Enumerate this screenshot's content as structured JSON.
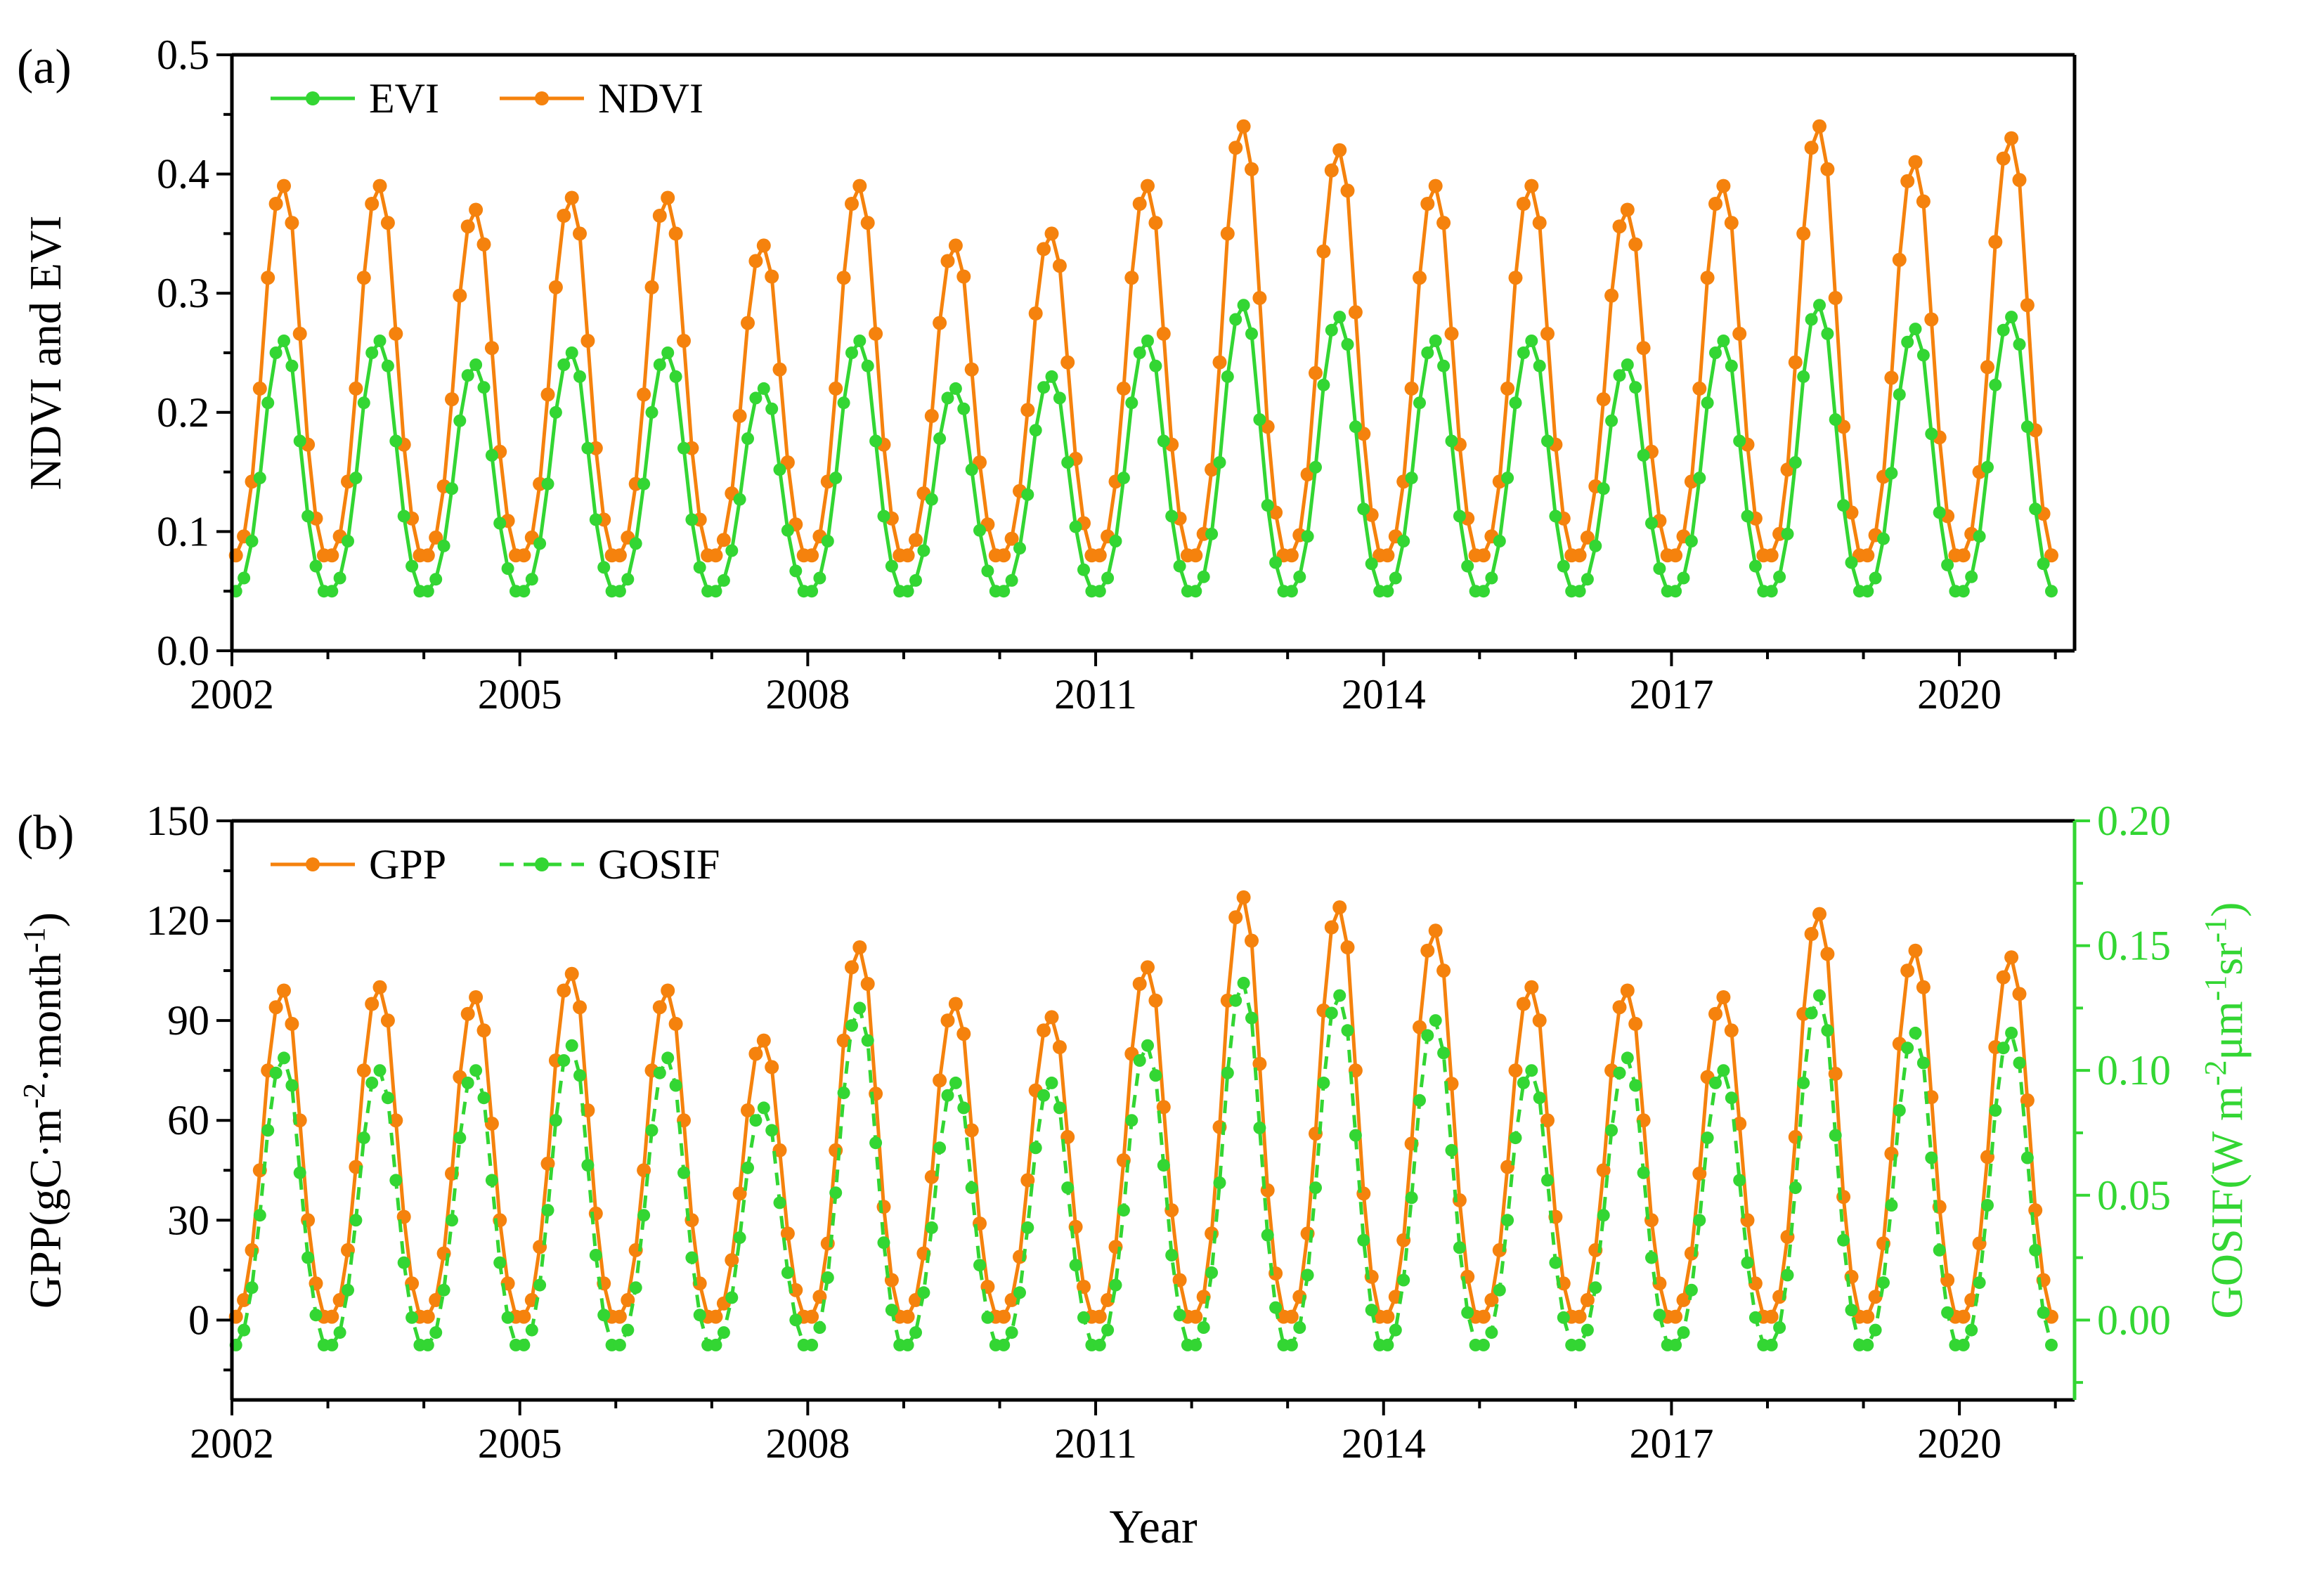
{
  "figure": {
    "panel_a_label": "(a)",
    "panel_b_label": "(b)",
    "xlabel": "Year",
    "accent_orange": "#F5820D",
    "accent_green": "#33D633"
  },
  "chart_data": [
    {
      "panel": "a",
      "type": "line",
      "panel_label": "(a)",
      "ylabel": "NDVI and EVI",
      "ylim": [
        0,
        0.5
      ],
      "xlim": [
        2002,
        2021.2
      ],
      "grid": false,
      "legend_position": "top-left-inside",
      "yticks": {
        "values": [
          0.0,
          0.1,
          0.2,
          0.3,
          0.4,
          0.5
        ],
        "labels": [
          "0.0",
          "0.1",
          "0.2",
          "0.3",
          "0.4",
          "0.5"
        ]
      },
      "xticks": {
        "values": [
          2002,
          2005,
          2008,
          2011,
          2014,
          2017,
          2020
        ],
        "labels": [
          "2002",
          "2005",
          "2008",
          "2011",
          "2014",
          "2017",
          "2020"
        ]
      },
      "x_start_year": 2002,
      "points_per_year": 12,
      "series": [
        {
          "name": "EVI",
          "color": "#33D633",
          "style": "solid",
          "marker": "circle",
          "values": [
            0.05,
            0.061,
            0.092,
            0.145,
            0.208,
            0.25,
            0.26,
            0.239,
            0.176,
            0.113,
            0.071,
            0.05,
            0.05,
            0.061,
            0.092,
            0.145,
            0.208,
            0.25,
            0.26,
            0.239,
            0.176,
            0.113,
            0.071,
            0.05,
            0.05,
            0.06,
            0.088,
            0.136,
            0.193,
            0.231,
            0.24,
            0.221,
            0.164,
            0.107,
            0.069,
            0.05,
            0.05,
            0.06,
            0.09,
            0.14,
            0.2,
            0.24,
            0.25,
            0.23,
            0.17,
            0.11,
            0.07,
            0.05,
            0.05,
            0.06,
            0.09,
            0.14,
            0.2,
            0.24,
            0.25,
            0.23,
            0.17,
            0.11,
            0.07,
            0.05,
            0.05,
            0.059,
            0.084,
            0.127,
            0.178,
            0.212,
            0.22,
            0.203,
            0.152,
            0.101,
            0.067,
            0.05,
            0.05,
            0.061,
            0.092,
            0.145,
            0.208,
            0.25,
            0.26,
            0.239,
            0.176,
            0.113,
            0.071,
            0.05,
            0.05,
            0.059,
            0.084,
            0.127,
            0.178,
            0.212,
            0.22,
            0.203,
            0.152,
            0.101,
            0.067,
            0.05,
            0.05,
            0.059,
            0.086,
            0.131,
            0.185,
            0.221,
            0.23,
            0.212,
            0.158,
            0.104,
            0.068,
            0.05,
            0.05,
            0.061,
            0.092,
            0.145,
            0.208,
            0.25,
            0.26,
            0.239,
            0.176,
            0.113,
            0.071,
            0.05,
            0.05,
            0.062,
            0.098,
            0.158,
            0.23,
            0.278,
            0.29,
            0.266,
            0.194,
            0.122,
            0.074,
            0.05,
            0.05,
            0.062,
            0.096,
            0.154,
            0.223,
            0.269,
            0.28,
            0.257,
            0.188,
            0.119,
            0.073,
            0.05,
            0.05,
            0.061,
            0.092,
            0.145,
            0.208,
            0.25,
            0.26,
            0.239,
            0.176,
            0.113,
            0.071,
            0.05,
            0.05,
            0.061,
            0.092,
            0.145,
            0.208,
            0.25,
            0.26,
            0.239,
            0.176,
            0.113,
            0.071,
            0.05,
            0.05,
            0.06,
            0.088,
            0.136,
            0.193,
            0.231,
            0.24,
            0.221,
            0.164,
            0.107,
            0.069,
            0.05,
            0.05,
            0.061,
            0.092,
            0.145,
            0.208,
            0.25,
            0.26,
            0.239,
            0.176,
            0.113,
            0.071,
            0.05,
            0.05,
            0.062,
            0.098,
            0.158,
            0.23,
            0.278,
            0.29,
            0.266,
            0.194,
            0.122,
            0.074,
            0.05,
            0.05,
            0.061,
            0.094,
            0.149,
            0.215,
            0.259,
            0.27,
            0.248,
            0.182,
            0.116,
            0.072,
            0.05,
            0.05,
            0.062,
            0.096,
            0.154,
            0.223,
            0.269,
            0.28,
            0.257,
            0.188,
            0.119,
            0.073,
            0.05
          ]
        },
        {
          "name": "NDVI",
          "color": "#F5820D",
          "style": "solid",
          "marker": "circle",
          "values": [
            0.08,
            0.096,
            0.142,
            0.22,
            0.313,
            0.375,
            0.39,
            0.359,
            0.266,
            0.173,
            0.111,
            0.08,
            0.08,
            0.096,
            0.142,
            0.22,
            0.313,
            0.375,
            0.39,
            0.359,
            0.266,
            0.173,
            0.111,
            0.08,
            0.08,
            0.095,
            0.138,
            0.211,
            0.298,
            0.356,
            0.37,
            0.341,
            0.254,
            0.167,
            0.109,
            0.08,
            0.08,
            0.095,
            0.14,
            0.215,
            0.305,
            0.365,
            0.38,
            0.35,
            0.26,
            0.17,
            0.11,
            0.08,
            0.08,
            0.095,
            0.14,
            0.215,
            0.305,
            0.365,
            0.38,
            0.35,
            0.26,
            0.17,
            0.11,
            0.08,
            0.08,
            0.093,
            0.132,
            0.197,
            0.275,
            0.327,
            0.34,
            0.314,
            0.236,
            0.158,
            0.106,
            0.08,
            0.08,
            0.096,
            0.142,
            0.22,
            0.313,
            0.375,
            0.39,
            0.359,
            0.266,
            0.173,
            0.111,
            0.08,
            0.08,
            0.093,
            0.132,
            0.197,
            0.275,
            0.327,
            0.34,
            0.314,
            0.236,
            0.158,
            0.106,
            0.08,
            0.08,
            0.094,
            0.134,
            0.202,
            0.283,
            0.337,
            0.35,
            0.323,
            0.242,
            0.161,
            0.107,
            0.08,
            0.08,
            0.096,
            0.142,
            0.22,
            0.313,
            0.375,
            0.39,
            0.359,
            0.266,
            0.173,
            0.111,
            0.08,
            0.08,
            0.098,
            0.152,
            0.242,
            0.35,
            0.422,
            0.44,
            0.404,
            0.296,
            0.188,
            0.116,
            0.08,
            0.08,
            0.097,
            0.148,
            0.233,
            0.335,
            0.403,
            0.42,
            0.386,
            0.284,
            0.182,
            0.114,
            0.08,
            0.08,
            0.096,
            0.142,
            0.22,
            0.313,
            0.375,
            0.39,
            0.359,
            0.266,
            0.173,
            0.111,
            0.08,
            0.08,
            0.096,
            0.142,
            0.22,
            0.313,
            0.375,
            0.39,
            0.359,
            0.266,
            0.173,
            0.111,
            0.08,
            0.08,
            0.095,
            0.138,
            0.211,
            0.298,
            0.356,
            0.37,
            0.341,
            0.254,
            0.167,
            0.109,
            0.08,
            0.08,
            0.096,
            0.142,
            0.22,
            0.313,
            0.375,
            0.39,
            0.359,
            0.266,
            0.173,
            0.111,
            0.08,
            0.08,
            0.098,
            0.152,
            0.242,
            0.35,
            0.422,
            0.44,
            0.404,
            0.296,
            0.188,
            0.116,
            0.08,
            0.08,
            0.097,
            0.146,
            0.229,
            0.328,
            0.394,
            0.41,
            0.377,
            0.278,
            0.179,
            0.113,
            0.08,
            0.08,
            0.098,
            0.15,
            0.238,
            0.343,
            0.413,
            0.43,
            0.395,
            0.29,
            0.185,
            0.115,
            0.08
          ]
        }
      ]
    },
    {
      "panel": "b",
      "type": "line",
      "panel_label": "(b)",
      "xlabel": "Year",
      "ylabel_left": "GPP(gC·m⁻²·month⁻¹)",
      "ylabel_right": "GOSIF(W m⁻²μm⁻¹sr⁻¹)",
      "ylim_left": [
        -24,
        150
      ],
      "ylim_right": [
        -0.032,
        0.2
      ],
      "xlim": [
        2002,
        2021.2
      ],
      "grid": false,
      "legend_position": "top-left-inside",
      "yticks_left": {
        "values": [
          0,
          30,
          60,
          90,
          120,
          150
        ],
        "labels": [
          "0",
          "30",
          "60",
          "90",
          "120",
          "150"
        ]
      },
      "yticks_right": {
        "values": [
          0.0,
          0.05,
          0.1,
          0.15,
          0.2
        ],
        "labels": [
          "0.00",
          "0.05",
          "0.10",
          "0.15",
          "0.20"
        ]
      },
      "xticks": {
        "values": [
          2002,
          2005,
          2008,
          2011,
          2014,
          2017,
          2020
        ],
        "labels": [
          "2002",
          "2005",
          "2008",
          "2011",
          "2014",
          "2017",
          "2020"
        ]
      },
      "x_start_year": 2002,
      "points_per_year": 12,
      "series": [
        {
          "name": "GPP",
          "axis": "left",
          "color": "#F5820D",
          "style": "solid",
          "marker": "circle",
          "values": [
            1,
            6,
            21,
            45,
            75,
            94,
            99,
            89,
            60,
            30,
            11,
            1,
            1,
            6,
            21,
            46,
            75,
            95,
            100,
            90,
            60,
            31,
            11,
            1,
            1,
            6,
            20,
            44,
            73,
            92,
            97,
            87,
            59,
            30,
            11,
            1,
            1,
            6,
            22,
            47,
            78,
            99,
            104,
            94,
            63,
            32,
            11,
            1,
            1,
            6,
            21,
            45,
            75,
            94,
            99,
            89,
            60,
            30,
            11,
            1,
            1,
            5,
            18,
            38,
            63,
            80,
            84,
            76,
            51,
            26,
            9,
            1,
            1,
            7,
            23,
            51,
            84,
            106,
            112,
            101,
            68,
            34,
            12,
            1,
            1,
            6,
            20,
            43,
            72,
            90,
            95,
            86,
            57,
            29,
            10,
            1,
            1,
            6,
            19,
            42,
            69,
            87,
            91,
            82,
            55,
            28,
            10,
            1,
            1,
            6,
            22,
            48,
            80,
            101,
            106,
            96,
            64,
            33,
            12,
            1,
            1,
            7,
            26,
            58,
            96,
            121,
            127,
            114,
            77,
            39,
            14,
            1,
            1,
            7,
            26,
            56,
            93,
            118,
            124,
            112,
            75,
            38,
            13,
            1,
            1,
            7,
            24,
            53,
            88,
            111,
            117,
            105,
            71,
            36,
            13,
            1,
            1,
            6,
            21,
            46,
            75,
            95,
            100,
            90,
            60,
            31,
            11,
            1,
            1,
            6,
            21,
            45,
            75,
            94,
            99,
            89,
            60,
            30,
            11,
            1,
            1,
            6,
            20,
            44,
            73,
            92,
            97,
            87,
            59,
            30,
            11,
            1,
            1,
            7,
            25,
            55,
            92,
            116,
            122,
            110,
            74,
            37,
            13,
            1,
            1,
            7,
            23,
            50,
            83,
            105,
            111,
            100,
            67,
            34,
            12,
            1,
            1,
            6,
            23,
            49,
            82,
            103,
            109,
            98,
            66,
            33,
            12,
            1
          ]
        },
        {
          "name": "GOSIF",
          "axis": "right",
          "color": "#33D633",
          "style": "dashed",
          "marker": "circle",
          "values": [
            -0.01,
            -0.004,
            0.013,
            0.042,
            0.076,
            0.099,
            0.105,
            0.094,
            0.059,
            0.025,
            0.002,
            -0.01,
            -0.01,
            -0.005,
            0.012,
            0.04,
            0.073,
            0.095,
            0.1,
            0.089,
            0.056,
            0.023,
            0.001,
            -0.01,
            -0.01,
            -0.005,
            0.012,
            0.04,
            0.073,
            0.095,
            0.1,
            0.089,
            0.056,
            0.023,
            0.001,
            -0.01,
            -0.01,
            -0.004,
            0.014,
            0.044,
            0.08,
            0.104,
            0.11,
            0.098,
            0.062,
            0.026,
            0.002,
            -0.01,
            -0.01,
            -0.004,
            0.013,
            0.042,
            0.076,
            0.099,
            0.105,
            0.094,
            0.059,
            0.025,
            0.002,
            -0.01,
            -0.01,
            -0.005,
            0.009,
            0.033,
            0.061,
            0.08,
            0.085,
            0.076,
            0.047,
            0.019,
            0.0,
            -0.01,
            -0.01,
            -0.003,
            0.017,
            0.051,
            0.091,
            0.118,
            0.125,
            0.112,
            0.071,
            0.031,
            0.004,
            -0.01,
            -0.01,
            -0.005,
            0.011,
            0.037,
            0.069,
            0.09,
            0.095,
            0.085,
            0.053,
            0.022,
            0.001,
            -0.01,
            -0.01,
            -0.005,
            0.011,
            0.037,
            0.069,
            0.09,
            0.095,
            0.085,
            0.053,
            0.022,
            0.001,
            -0.01,
            -0.01,
            -0.004,
            0.014,
            0.044,
            0.08,
            0.104,
            0.11,
            0.098,
            0.062,
            0.026,
            0.002,
            -0.01,
            -0.01,
            -0.003,
            0.019,
            0.055,
            0.099,
            0.128,
            0.135,
            0.121,
            0.077,
            0.034,
            0.005,
            -0.01,
            -0.01,
            -0.003,
            0.018,
            0.053,
            0.095,
            0.123,
            0.13,
            0.116,
            0.074,
            0.032,
            0.004,
            -0.01,
            -0.01,
            -0.004,
            0.016,
            0.049,
            0.088,
            0.114,
            0.12,
            0.107,
            0.068,
            0.029,
            0.003,
            -0.01,
            -0.01,
            -0.005,
            0.012,
            0.04,
            0.073,
            0.095,
            0.1,
            0.089,
            0.056,
            0.023,
            0.001,
            -0.01,
            -0.01,
            -0.004,
            0.013,
            0.042,
            0.076,
            0.099,
            0.105,
            0.094,
            0.059,
            0.025,
            0.002,
            -0.01,
            -0.01,
            -0.005,
            0.012,
            0.04,
            0.073,
            0.095,
            0.1,
            0.089,
            0.056,
            0.023,
            0.001,
            -0.01,
            -0.01,
            -0.003,
            0.018,
            0.053,
            0.095,
            0.123,
            0.13,
            0.116,
            0.074,
            0.032,
            0.004,
            -0.01,
            -0.01,
            -0.004,
            0.015,
            0.046,
            0.084,
            0.109,
            0.115,
            0.103,
            0.065,
            0.028,
            0.003,
            -0.01,
            -0.01,
            -0.004,
            0.015,
            0.046,
            0.084,
            0.109,
            0.115,
            0.103,
            0.065,
            0.028,
            0.003,
            -0.01
          ]
        }
      ]
    }
  ]
}
